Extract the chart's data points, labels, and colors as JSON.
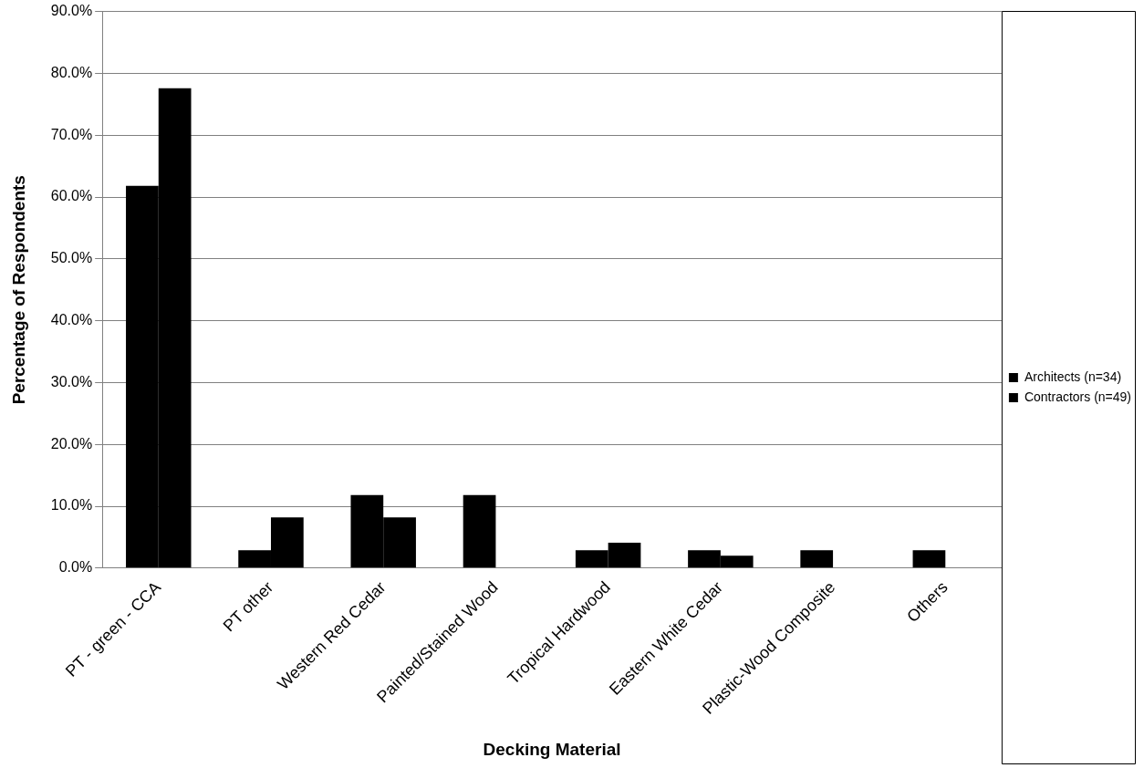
{
  "chart_data": {
    "type": "bar",
    "xlabel": "Decking Material",
    "ylabel": "Percentage of Respondents",
    "categories": [
      "PT - green - CCA",
      "PT other",
      "Western Red Cedar",
      "Painted/Stained Wood",
      "Tropical Hardwood",
      "Eastern White Cedar",
      "Plastic-Wood Composite",
      "Others"
    ],
    "series": [
      {
        "name": "Architects (n=34)",
        "color": "#000000",
        "values": [
          61.8,
          2.9,
          11.8,
          11.8,
          2.9,
          2.9,
          2.9,
          2.9
        ]
      },
      {
        "name": "Contractors (n=49)",
        "color": "#000000",
        "values": [
          77.6,
          8.2,
          8.2,
          0,
          4.1,
          2.0,
          0,
          0
        ]
      }
    ],
    "ylim": [
      0,
      90
    ],
    "yticks": [
      {
        "value": 0,
        "label": "0.0%"
      },
      {
        "value": 10,
        "label": "10.0%"
      },
      {
        "value": 20,
        "label": "20.0%"
      },
      {
        "value": 30,
        "label": "30.0%"
      },
      {
        "value": 40,
        "label": "40.0%"
      },
      {
        "value": 50,
        "label": "50.0%"
      },
      {
        "value": 60,
        "label": "60.0%"
      },
      {
        "value": 70,
        "label": "70.0%"
      },
      {
        "value": 80,
        "label": "80.0%"
      },
      {
        "value": 90,
        "label": "90.0%"
      }
    ],
    "grid": "y",
    "legend": "right"
  }
}
